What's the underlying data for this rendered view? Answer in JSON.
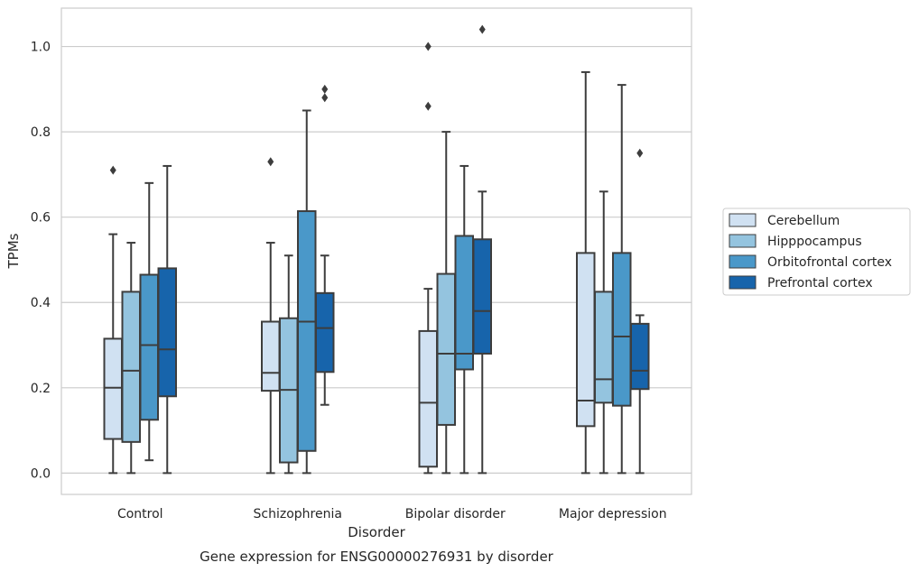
{
  "chart_data": {
    "type": "box",
    "caption": "Gene expression for ENSG00000276931 by disorder",
    "xlabel": "Disorder",
    "ylabel": "TPMs",
    "ylim": [
      -0.05,
      1.09
    ],
    "yticks": [
      "0.0",
      "0.2",
      "0.4",
      "0.6",
      "0.8",
      "1.0"
    ],
    "ytick_values": [
      0.0,
      0.2,
      0.4,
      0.6,
      0.8,
      1.0
    ],
    "grid": true,
    "legend_position": "right",
    "categories": [
      "Control",
      "Schizophrenia",
      "Bipolar disorder",
      "Major depression"
    ],
    "series": [
      {
        "name": "Cerebellum",
        "color": "#d0e1f2",
        "boxes": [
          {
            "whislo": 0.0,
            "q1": 0.08,
            "med": 0.2,
            "q3": 0.315,
            "whishi": 0.56,
            "fliers": [
              0.71
            ]
          },
          {
            "whislo": 0.0,
            "q1": 0.193,
            "med": 0.235,
            "q3": 0.355,
            "whishi": 0.54,
            "fliers": [
              0.73
            ]
          },
          {
            "whislo": 0.0,
            "q1": 0.015,
            "med": 0.165,
            "q3": 0.333,
            "whishi": 0.432,
            "fliers": [
              0.86,
              1.0
            ]
          },
          {
            "whislo": 0.0,
            "q1": 0.11,
            "med": 0.17,
            "q3": 0.516,
            "whishi": 0.94,
            "fliers": []
          }
        ]
      },
      {
        "name": "Hipppocampus",
        "color": "#94c4df",
        "boxes": [
          {
            "whislo": 0.0,
            "q1": 0.073,
            "med": 0.24,
            "q3": 0.425,
            "whishi": 0.54,
            "fliers": []
          },
          {
            "whislo": 0.0,
            "q1": 0.025,
            "med": 0.195,
            "q3": 0.363,
            "whishi": 0.51,
            "fliers": []
          },
          {
            "whislo": 0.0,
            "q1": 0.113,
            "med": 0.28,
            "q3": 0.467,
            "whishi": 0.8,
            "fliers": []
          },
          {
            "whislo": 0.0,
            "q1": 0.165,
            "med": 0.22,
            "q3": 0.425,
            "whishi": 0.66,
            "fliers": []
          }
        ]
      },
      {
        "name": "Orbitofrontal cortex",
        "color": "#4a98c9",
        "boxes": [
          {
            "whislo": 0.03,
            "q1": 0.125,
            "med": 0.3,
            "q3": 0.465,
            "whishi": 0.68,
            "fliers": []
          },
          {
            "whislo": 0.0,
            "q1": 0.052,
            "med": 0.355,
            "q3": 0.614,
            "whishi": 0.85,
            "fliers": []
          },
          {
            "whislo": 0.0,
            "q1": 0.243,
            "med": 0.28,
            "q3": 0.556,
            "whishi": 0.72,
            "fliers": []
          },
          {
            "whislo": 0.0,
            "q1": 0.158,
            "med": 0.32,
            "q3": 0.516,
            "whishi": 0.91,
            "fliers": []
          }
        ]
      },
      {
        "name": "Prefrontal cortex",
        "color": "#1764ab",
        "boxes": [
          {
            "whislo": 0.0,
            "q1": 0.18,
            "med": 0.29,
            "q3": 0.48,
            "whishi": 0.72,
            "fliers": []
          },
          {
            "whislo": 0.16,
            "q1": 0.237,
            "med": 0.34,
            "q3": 0.422,
            "whishi": 0.51,
            "fliers": [
              0.88,
              0.9
            ]
          },
          {
            "whislo": 0.0,
            "q1": 0.28,
            "med": 0.38,
            "q3": 0.548,
            "whishi": 0.66,
            "fliers": [
              1.04
            ]
          },
          {
            "whislo": 0.0,
            "q1": 0.197,
            "med": 0.24,
            "q3": 0.35,
            "whishi": 0.37,
            "fliers": [
              0.75
            ]
          }
        ]
      }
    ]
  }
}
